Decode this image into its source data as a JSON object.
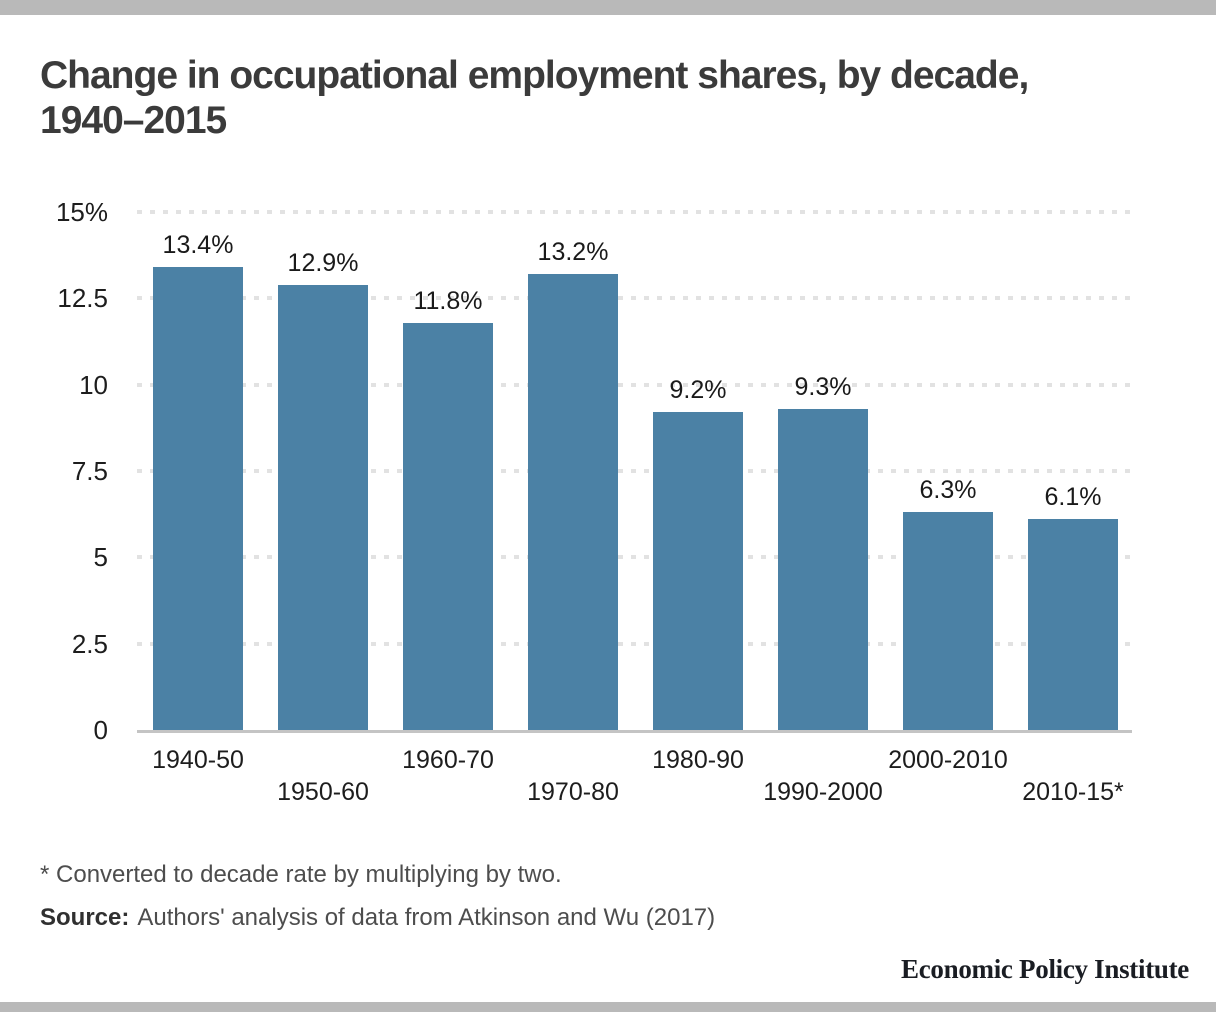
{
  "header": {
    "title_line1": "Change in occupational employment shares, by decade,",
    "title_line2": "1940–2015"
  },
  "chart_data": {
    "type": "bar",
    "title": "Change in occupational employment shares, by decade, 1940–2015",
    "categories": [
      "1940-50",
      "1950-60",
      "1960-70",
      "1970-80",
      "1980-90",
      "1990-2000",
      "2000-2010",
      "2010-15*"
    ],
    "values": [
      13.4,
      12.9,
      11.8,
      13.2,
      9.2,
      9.3,
      6.3,
      6.1
    ],
    "data_labels": [
      "13.4%",
      "12.9%",
      "11.8%",
      "13.2%",
      "9.2%",
      "9.3%",
      "6.3%",
      "6.1%"
    ],
    "y_ticks": [
      {
        "value": 15,
        "label": "15%"
      },
      {
        "value": 12.5,
        "label": "12.5"
      },
      {
        "value": 10,
        "label": "10"
      },
      {
        "value": 7.5,
        "label": "7.5"
      },
      {
        "value": 5,
        "label": "5"
      },
      {
        "value": 2.5,
        "label": "2.5"
      },
      {
        "value": 0,
        "label": "0"
      }
    ],
    "ylim": [
      0,
      15
    ],
    "xlabel": "",
    "ylabel": "",
    "grid": "horizontal-dotted",
    "legend": "none",
    "bar_color": "#4b81a5"
  },
  "footer": {
    "footnote": "* Converted to decade rate by multiplying by two.",
    "source_label": "Source:",
    "source_text": "Authors' analysis of data from Atkinson and Wu (2017)",
    "brand": "Economic Policy Institute"
  },
  "colors": {
    "bar": "#4b81a5",
    "title": "#3b3b3b",
    "axis_text": "#1d1d1d",
    "muted_text": "#4d4d4d",
    "gridline": "#e2e2e2",
    "axis_line": "#c4c4c4",
    "divider_bar": "#b9b9b9"
  }
}
